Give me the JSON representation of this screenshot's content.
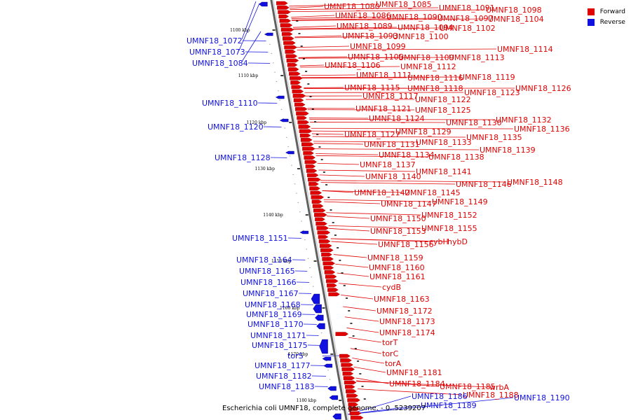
{
  "colors": {
    "forward": "#e00000",
    "reverse": "#1010e0",
    "backbone": "#808080",
    "background": "#ffffff"
  },
  "legend": [
    {
      "label": "Forward",
      "color": "#e00000"
    },
    {
      "label": "Reverse",
      "color": "#1010e0"
    }
  ],
  "caption": "Escherichia coli UMNF18, complete genome. - 0..5239207",
  "axis": {
    "start_kbp": 1100,
    "end_kbp": 1180,
    "ticks": [
      "1100 kbp",
      "1110 kbp",
      "1120 kbp",
      "1130 kbp",
      "1140 kbp",
      "1150 kbp",
      "1160 kbp",
      "1170 kbp",
      "1180 kbp"
    ]
  },
  "forward_labels": [
    "UMNF18_1080",
    "UMNF18_1085",
    "UMNF18_1091",
    "UMNF18_1098",
    "UMNF18_1086",
    "UMNF18_1090",
    "UMNF18_1097",
    "UMNF18_1104",
    "UMNF18_1089",
    "UMNF18_1094",
    "UMNF18_1102",
    "UMNF18_1093",
    "UMNF18_1100",
    "UMNF18_1099",
    "UMNF18_1114",
    "UMNF18_1105",
    "UMNF18_1109",
    "UMNF18_1113",
    "UMNF18_1106",
    "UMNF18_1112",
    "UMNF18_1111",
    "UMNF18_1116",
    "UMNF18_1119",
    "UMNF18_1115",
    "UMNF18_1118",
    "UMNF18_1126",
    "UMNF18_1117",
    "UMNF18_1123",
    "UMNF18_1122",
    "UMNF18_1121",
    "UMNF18_1125",
    "UMNF18_1124",
    "UMNF18_1130",
    "UMNF18_1132",
    "UMNF18_1136",
    "UMNF18_1127",
    "UMNF18_1129",
    "UMNF18_1135",
    "UMNF18_1131",
    "UMNF18_1133",
    "UMNF18_1139",
    "UMNF18_1134",
    "UMNF18_1138",
    "UMNF18_1137",
    "UMNF18_1141",
    "UMNF18_1140",
    "UMNF18_1146",
    "UMNF18_1148",
    "UMNF18_1142",
    "UMNF18_1145",
    "UMNF18_1149",
    "UMNF18_1147",
    "UMNF18_1152",
    "UMNF18_1150",
    "UMNF18_1155",
    "UMNF18_1153",
    "cybH",
    "hybD",
    "UMNF18_1156",
    "UMNF18_1159",
    "UMNF18_1160",
    "UMNF18_1161",
    "cydB",
    "UMNF18_1163",
    "UMNF18_1172",
    "UMNF18_1173",
    "UMNF18_1174",
    "torT",
    "torC",
    "torA",
    "UMNF18_1181",
    "UMNF18_1184",
    "UMNF18_1185",
    "wrbA",
    "UMNF18_1188"
  ],
  "reverse_labels": [
    "UMNF18_1072",
    "UMNF18_1073",
    "UMNF18_1084",
    "UMNF18_1110",
    "UMNF18_1120",
    "UMNF18_1128",
    "UMNF18_1151",
    "UMNF18_1164",
    "UMNF18_1165",
    "UMNF18_1166",
    "UMNF18_1167",
    "UMNF18_1168",
    "UMNF18_1169",
    "UMNF18_1170",
    "UMNF18_1171",
    "UMNF18_1175",
    "torS",
    "UMNF18_1177",
    "UMNF18_1182",
    "UMNF18_1183",
    "UMNF18_1186",
    "UMNF18_1189",
    "UMNF18_1190"
  ]
}
